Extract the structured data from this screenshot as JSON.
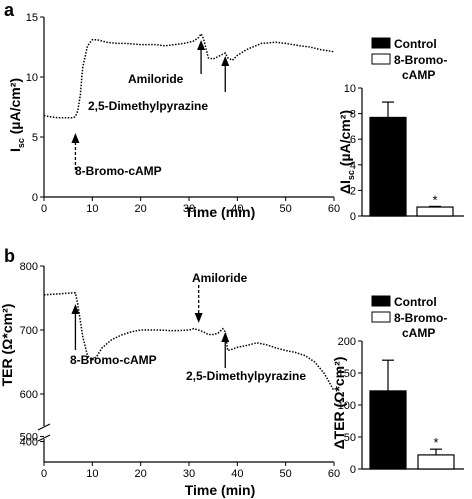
{
  "chart_data": [
    {
      "panel": "a",
      "type": "line",
      "ylabel": "I_sc (µA/cm²)",
      "ylabel_main": "I",
      "ylabel_sub": "sc",
      "ylabel_rest": " (µA/cm²)",
      "xlabel": "Time (min)",
      "xlim": [
        0,
        60
      ],
      "ylim": [
        0,
        15
      ],
      "xticks": [
        0,
        10,
        20,
        30,
        40,
        50,
        60
      ],
      "yticks": [
        0,
        5,
        10,
        15
      ],
      "grid": false,
      "series": [
        {
          "style": "dotted",
          "x": [
            0,
            1,
            3,
            5,
            6,
            6.5,
            7,
            7.5,
            8,
            9,
            10,
            11,
            13,
            15,
            17,
            20,
            23,
            25,
            27,
            29,
            31,
            32,
            32.5,
            33,
            34,
            35,
            36,
            37,
            37.5,
            38,
            39,
            40,
            42,
            45,
            48,
            50,
            53,
            55,
            57,
            60
          ],
          "y": [
            6.8,
            6.7,
            6.6,
            6.6,
            6.6,
            6.7,
            7.2,
            8.5,
            10.8,
            12.6,
            13.1,
            13.1,
            12.9,
            12.8,
            12.8,
            12.7,
            12.7,
            12.6,
            12.7,
            12.8,
            13.0,
            13.3,
            13.6,
            13.2,
            11.6,
            11.5,
            11.7,
            11.9,
            12.0,
            11.6,
            11.4,
            11.8,
            12.3,
            12.8,
            12.9,
            12.8,
            12.6,
            12.5,
            12.3,
            12.1
          ]
        }
      ],
      "annotations": [
        {
          "text": "8-Bromo-cAMP",
          "x": 6.5,
          "arrow": "dashed",
          "direction": "up"
        },
        {
          "text": "Amiloride",
          "x": 32.5,
          "arrow": "solid",
          "direction": "up"
        },
        {
          "text": "2,5-Dimethylpyrazine",
          "x": 37.5,
          "arrow": "solid",
          "direction": "up"
        }
      ]
    },
    {
      "panel": "a-inset",
      "type": "bar",
      "ylabel": "ΔI_sc (µA/cm²)",
      "ylabel_main": "ΔI",
      "ylabel_sub": "sc",
      "ylabel_rest": " (µA/cm²)",
      "ylim": [
        0,
        10
      ],
      "yticks": [
        0,
        2,
        4,
        6,
        8,
        10
      ],
      "categories": [
        "Control",
        "8-Bromo-cAMP"
      ],
      "values": [
        7.7,
        0.7
      ],
      "errors": [
        1.2,
        0.05
      ],
      "colors": [
        "#000000",
        "#ffffff"
      ],
      "significance": [
        "",
        "*"
      ],
      "legend": [
        {
          "label": "Control",
          "color": "#000000"
        },
        {
          "label_line1": "8-Bromo-",
          "label_line2": "cAMP",
          "color": "#ffffff"
        }
      ],
      "legend_position": "top"
    },
    {
      "panel": "b",
      "type": "line",
      "ylabel": "TER (Ω*cm²)",
      "xlabel": "Time (min)",
      "xlim": [
        0,
        60
      ],
      "ylim_upper": [
        550,
        800
      ],
      "ylim_lower": [
        0,
        450
      ],
      "axis_break": true,
      "xticks": [
        0,
        10,
        20,
        30,
        40,
        50,
        60
      ],
      "yticks": [
        400,
        500,
        600,
        700,
        800
      ],
      "grid": false,
      "series": [
        {
          "style": "dotted",
          "x": [
            0,
            2,
            4,
            6,
            6.5,
            7,
            8,
            9,
            10,
            11,
            12,
            14,
            16,
            18,
            20,
            22,
            24,
            26,
            28,
            30,
            31,
            32,
            33,
            34,
            35,
            36,
            37,
            37.5,
            38,
            39,
            40,
            42,
            44,
            46,
            48,
            50,
            52,
            54,
            56,
            58,
            60
          ],
          "y": [
            755,
            756,
            757,
            758,
            758,
            740,
            690,
            660,
            653,
            660,
            672,
            685,
            692,
            697,
            700,
            700,
            700,
            699,
            699,
            700,
            702,
            700,
            697,
            693,
            693,
            695,
            702,
            697,
            668,
            670,
            673,
            676,
            680,
            677,
            672,
            668,
            665,
            660,
            650,
            632,
            605
          ]
        }
      ],
      "annotations": [
        {
          "text": "8-Bromo-cAMP",
          "x": 6.5,
          "arrow": "solid",
          "direction": "up"
        },
        {
          "text": "Amiloride",
          "x": 32,
          "arrow": "dashed",
          "direction": "down"
        },
        {
          "text": "2,5-Dimethylpyrazine",
          "x": 37.5,
          "arrow": "solid",
          "direction": "up"
        }
      ]
    },
    {
      "panel": "b-inset",
      "type": "bar",
      "ylabel": "ΔTER (Ω*cm²)",
      "ylim": [
        0,
        200
      ],
      "yticks": [
        0,
        50,
        100,
        150,
        200
      ],
      "categories": [
        "Control",
        "8-Bromo-cAMP"
      ],
      "values": [
        122,
        22
      ],
      "errors": [
        48,
        9
      ],
      "colors": [
        "#000000",
        "#ffffff"
      ],
      "significance": [
        "",
        "*"
      ],
      "legend": [
        {
          "label": "Control",
          "color": "#000000"
        },
        {
          "label_line1": "8-Bromo-",
          "label_line2": "cAMP",
          "color": "#ffffff"
        }
      ],
      "legend_position": "top"
    }
  ]
}
